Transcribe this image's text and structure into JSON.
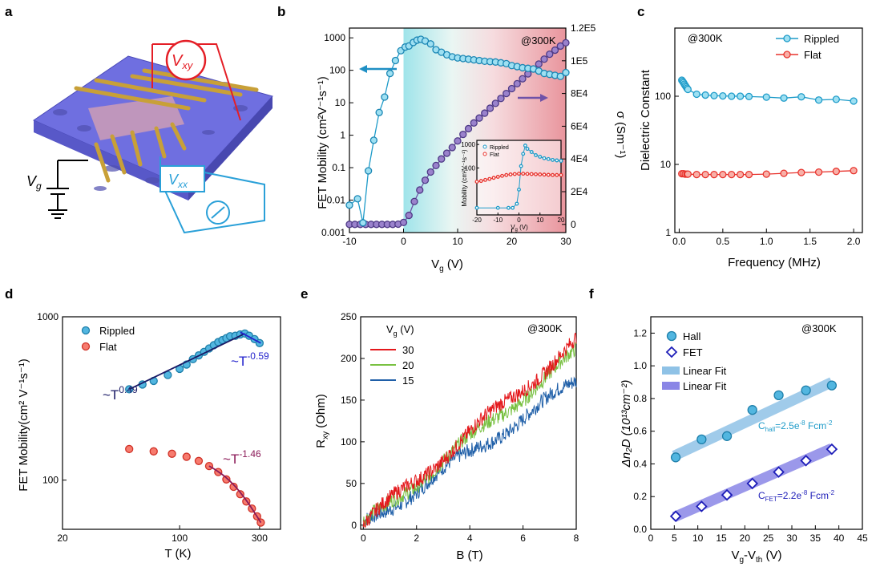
{
  "panel_labels": {
    "a": "a",
    "b": "b",
    "c": "c",
    "d": "d",
    "e": "e",
    "f": "f"
  },
  "panel_a": {
    "vxy": "V",
    "vxy_sub": "xy",
    "vxx": "V",
    "vxx_sub": "xx",
    "vg": "V",
    "vg_sub": "g"
  },
  "colors": {
    "rippled": "#1e9bc9",
    "flat": "#e8332d",
    "purple": "#6f52a8",
    "blue_line": "#1f5fa8",
    "green_line": "#79c142",
    "red_line": "#e4181c"
  },
  "chart_data": [
    {
      "id": "b",
      "type": "line",
      "xlabel": "V",
      "xlabel_sub": "g",
      "xlabel_unit": " (V)",
      "ylabel": "FET Mobility (cm²V⁻¹s⁻¹)",
      "y2label": "σ (Sm⁻¹)",
      "annotation": "@300K",
      "xlim": [
        -10,
        30
      ],
      "xticks": [
        "-10",
        "0",
        "10",
        "20",
        "30"
      ],
      "yscale": "log",
      "ylim": [
        0.001,
        2000
      ],
      "yticks": [
        "0.001",
        "0.01",
        "0.1",
        "1",
        "10",
        "100",
        "1000"
      ],
      "y2lim": [
        -5000,
        120000
      ],
      "y2ticks": [
        "0",
        "2E4",
        "4E4",
        "6E4",
        "8E4",
        "1E5",
        "1.2E5"
      ],
      "series": [
        {
          "x": [
            -10,
            -8.5,
            -7.5,
            -6.5,
            -5.5,
            -4.5,
            -3.5,
            -2.5,
            -1.5,
            -0.5,
            0.3,
            1,
            1.8,
            2.5,
            3.2,
            4,
            5,
            6,
            7,
            8,
            9,
            10,
            11,
            12,
            13,
            14,
            15,
            16,
            17,
            18,
            19,
            20,
            21,
            22,
            23,
            24,
            25,
            26,
            27,
            28,
            29,
            30
          ],
          "values": [
            0.007,
            0.011,
            0.002,
            0.08,
            0.7,
            5,
            15,
            80,
            200,
            400,
            520,
            560,
            720,
            850,
            900,
            800,
            650,
            430,
            360,
            300,
            260,
            240,
            230,
            220,
            210,
            200,
            190,
            185,
            180,
            170,
            160,
            140,
            130,
            120,
            115,
            110,
            95,
            80,
            75,
            70,
            65,
            85
          ],
          "axis": "left",
          "color": "#1e9bc9"
        },
        {
          "x": [
            -10,
            -9,
            -8,
            -7,
            -6,
            -5,
            -4,
            -3,
            -2,
            -1,
            0,
            1,
            2,
            3,
            4,
            5,
            6,
            7,
            8,
            9,
            10,
            11,
            12,
            13,
            14,
            15,
            16,
            17,
            18,
            19,
            20,
            21,
            22,
            23,
            24,
            25,
            26,
            27,
            28,
            29,
            30
          ],
          "values": [
            0,
            0,
            0,
            0,
            0,
            0,
            0,
            0,
            0,
            150,
            1200,
            5500,
            14000,
            21000,
            27000,
            32000,
            36000,
            40000,
            43500,
            47000,
            51000,
            55000,
            58500,
            62000,
            65000,
            68000,
            71000,
            74000,
            77000,
            80000,
            83000,
            86000,
            89000,
            92000,
            95000,
            98000,
            101000,
            104000,
            106500,
            109000,
            111000
          ],
          "axis": "right",
          "color": "#6f52a8"
        }
      ],
      "inset": {
        "legend": [
          "Rippled",
          "Flat"
        ],
        "ylabel": "Mobility (cm²V⁻¹s⁻¹)",
        "xlabel": "V",
        "xlabel_sub": "g",
        "xlabel_unit": " (V)",
        "xticks": [
          "-20",
          "-10",
          "0",
          "10",
          "20"
        ],
        "yticks": [
          "100",
          "1000"
        ],
        "rippled": {
          "x": [
            -20,
            -10,
            -5,
            -3,
            -1,
            0,
            1,
            2,
            3,
            4,
            6,
            8,
            10,
            12,
            14,
            16,
            18,
            20
          ],
          "values": [
            2,
            2,
            2,
            2,
            3,
            12,
            120,
            400,
            900,
            650,
            480,
            350,
            300,
            260,
            240,
            220,
            210,
            200
          ]
        },
        "flat": {
          "x": [
            -20,
            -18,
            -16,
            -14,
            -12,
            -10,
            -8,
            -6,
            -4,
            -2,
            0,
            2,
            4,
            6,
            8,
            10,
            12,
            14,
            16,
            18,
            20
          ],
          "values": [
            26,
            28,
            31,
            34,
            38,
            42,
            46,
            50,
            53,
            55,
            57,
            57,
            56,
            55,
            54,
            53,
            52,
            51,
            50,
            50,
            50
          ]
        }
      }
    },
    {
      "id": "c",
      "type": "scatter",
      "xlabel": "Frequency (MHz)",
      "ylabel": "Dielectric Constant",
      "annotation": "@300K",
      "xlim": [
        -0.05,
        2.1
      ],
      "xticks": [
        "0.0",
        "0.5",
        "1.0",
        "1.5",
        "2.0"
      ],
      "yscale": "log",
      "ylim": [
        1,
        1000
      ],
      "yticks": [
        "1",
        "10",
        "100"
      ],
      "series": [
        {
          "name": "Rippled",
          "color": "#1e9bc9",
          "x": [
            0.03,
            0.04,
            0.05,
            0.06,
            0.07,
            0.08,
            0.09,
            0.1,
            0.2,
            0.3,
            0.4,
            0.5,
            0.6,
            0.7,
            0.8,
            1.0,
            1.2,
            1.4,
            1.6,
            1.8,
            2.0
          ],
          "values": [
            172,
            165,
            158,
            150,
            143,
            137,
            131,
            126,
            107,
            104,
            102,
            101,
            100,
            100,
            99,
            97,
            94,
            98,
            88,
            90,
            85
          ]
        },
        {
          "name": "Flat",
          "color": "#e8332d",
          "x": [
            0.03,
            0.05,
            0.07,
            0.09,
            0.1,
            0.2,
            0.3,
            0.4,
            0.5,
            0.6,
            0.7,
            0.8,
            1.0,
            1.2,
            1.4,
            1.6,
            1.8,
            2.0
          ],
          "values": [
            7.3,
            7.3,
            7.2,
            7.2,
            7.2,
            7.1,
            7.1,
            7.1,
            7.1,
            7.1,
            7.1,
            7.1,
            7.2,
            7.4,
            7.6,
            7.7,
            7.9,
            8.1
          ]
        }
      ]
    },
    {
      "id": "d",
      "type": "scatter",
      "xlabel": "T (K)",
      "ylabel": "FET Mobility(cm² V⁻¹s⁻¹)",
      "xscale": "log",
      "xlim": [
        20,
        400
      ],
      "xticks": [
        "20",
        "100",
        "300"
      ],
      "yscale": "log",
      "ylim": [
        50,
        1000
      ],
      "yticks": [
        "100",
        "1000"
      ],
      "series": [
        {
          "name": "Rippled",
          "color": "#1e9bc9",
          "x": [
            50,
            60,
            70,
            85,
            100,
            110,
            120,
            130,
            140,
            150,
            160,
            170,
            180,
            190,
            200,
            215,
            230,
            245,
            260,
            280,
            300
          ],
          "values": [
            360,
            385,
            405,
            440,
            480,
            510,
            550,
            580,
            610,
            640,
            670,
            700,
            720,
            740,
            760,
            765,
            780,
            790,
            765,
            730,
            690
          ]
        },
        {
          "name": "Flat",
          "color": "#e8332d",
          "x": [
            50,
            70,
            90,
            110,
            130,
            150,
            170,
            190,
            210,
            230,
            250,
            270,
            290,
            305
          ],
          "values": [
            155,
            150,
            145,
            139,
            131,
            122,
            112,
            101,
            91,
            82,
            74,
            67,
            60,
            55
          ]
        }
      ],
      "fits": [
        {
          "label": "~T",
          "exp": "0.49",
          "x": [
            50,
            245
          ],
          "values": [
            360,
            790
          ],
          "color": "#1a1a66"
        },
        {
          "label": "~T",
          "exp": "-0.59",
          "x": [
            230,
            305
          ],
          "values": [
            805,
            690
          ],
          "color": "#2323cc"
        },
        {
          "label": "~T",
          "exp": "-1.46",
          "x": [
            150,
            305
          ],
          "values": [
            122,
            55
          ],
          "color": "#8b1a58"
        }
      ]
    },
    {
      "id": "e",
      "type": "line",
      "xlabel": "B (T)",
      "ylabel": "R",
      "ylabel_sub": "xy",
      "ylabel_unit": " (Ohm)",
      "annotation": "@300K",
      "legend_title": "V",
      "legend_title_sub": "g",
      "legend_title_unit": " (V)",
      "xlim": [
        -0.1,
        8
      ],
      "xticks": [
        "0",
        "2",
        "4",
        "6",
        "8"
      ],
      "ylim": [
        -5,
        250
      ],
      "yticks": [
        "0",
        "50",
        "100",
        "150",
        "200",
        "250"
      ],
      "series": [
        {
          "name": "30",
          "color": "#e4181c",
          "slope": 27.5
        },
        {
          "name": "20",
          "color": "#79c142",
          "slope": 25.8
        },
        {
          "name": "15",
          "color": "#1f5fa8",
          "slope": 21.5
        }
      ]
    },
    {
      "id": "f",
      "type": "scatter",
      "xlabel": "V",
      "xlabel_sub": "g",
      "xlabel_mid": "-V",
      "xlabel_sub2": "th",
      "xlabel_unit": " (V)",
      "ylabel": "Δn₂D (10¹³cm⁻²)",
      "annotation": "@300K",
      "xlim": [
        0,
        45
      ],
      "xticks": [
        "0",
        "5",
        "10",
        "15",
        "20",
        "25",
        "30",
        "35",
        "40",
        "45"
      ],
      "ylim": [
        0,
        1.3
      ],
      "yticks": [
        "0.0",
        "0.2",
        "0.4",
        "0.6",
        "0.8",
        "1.0",
        "1.2"
      ],
      "series": [
        {
          "name": "Hall",
          "x": [
            5.3,
            10.8,
            16.2,
            21.6,
            27.2,
            33.0,
            38.5
          ],
          "values": [
            0.44,
            0.55,
            0.57,
            0.73,
            0.82,
            0.85,
            0.88
          ],
          "color": "#1e9bc9"
        },
        {
          "name": "FET",
          "x": [
            5.3,
            10.8,
            16.2,
            21.6,
            27.2,
            33.0,
            38.5
          ],
          "values": [
            0.08,
            0.14,
            0.21,
            0.28,
            0.35,
            0.42,
            0.49
          ],
          "color": "#1d1db8"
        }
      ],
      "fits": [
        {
          "name": "Linear Fit",
          "x": [
            5,
            38.5
          ],
          "values": [
            0.45,
            0.9
          ],
          "color": "#8fc2e6"
        },
        {
          "name": "Linear Fit",
          "x": [
            5,
            38.5
          ],
          "values": [
            0.075,
            0.495
          ],
          "color": "#8a86e6"
        }
      ],
      "labels": {
        "hall_pre": "C",
        "hall_sub": "hall",
        "hall_post": "=2.5e",
        "hall_exp": "-8",
        "hall_unit": " Fcm",
        "hall_unit_exp": "-2",
        "fet_pre": "C",
        "fet_sub": "FET",
        "fet_post": "=2.2e",
        "fet_exp": "-8",
        "fet_unit": " Fcm",
        "fet_unit_exp": "-2"
      }
    }
  ]
}
